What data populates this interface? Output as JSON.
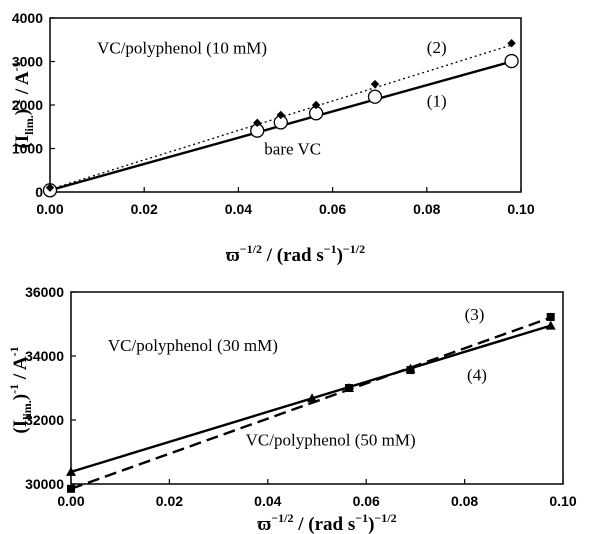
{
  "chart_data": [
    {
      "type": "scatter",
      "xlabel": {
        "main": "ϖ",
        "exp": "−1/2",
        "rest": " / (rad s",
        "exp2": "−1",
        "close": ")",
        "exp3": "−1/2"
      },
      "ylabel": {
        "open": "(I",
        "sub": "lim.",
        "close": ")",
        "exp": "-1",
        "rest": " / A",
        "exp2": "-1"
      },
      "xlim": [
        0,
        0.1
      ],
      "ylim": [
        0,
        4000
      ],
      "x_ticks": [
        "0.00",
        "0.02",
        "0.04",
        "0.06",
        "0.08",
        "0.10"
      ],
      "y_ticks": [
        "0",
        "1000",
        "2000",
        "3000",
        "4000"
      ],
      "series": [
        {
          "name": "(1)",
          "marker": "circle",
          "x": [
            0.0,
            0.044,
            0.049,
            0.0565,
            0.069,
            0.098
          ],
          "y": [
            40,
            1410,
            1600,
            1810,
            2190,
            3010
          ],
          "fit": {
            "x": [
              0,
              0.098
            ],
            "y": [
              40,
              3000
            ],
            "style": "solid"
          }
        },
        {
          "name": "(2)",
          "marker": "diamond",
          "x": [
            0.0,
            0.044,
            0.049,
            0.0565,
            0.069,
            0.098
          ],
          "y": [
            100,
            1590,
            1770,
            2000,
            2480,
            3420
          ],
          "fit": {
            "x": [
              0,
              0.098
            ],
            "y": [
              60,
              3380
            ],
            "style": "dotted"
          }
        }
      ],
      "annotations": [
        {
          "text": "VC/polyphenol (10 mM)",
          "x": 0.01,
          "y": 3180
        },
        {
          "text": "(2)",
          "x": 0.08,
          "y": 3200
        },
        {
          "text": "(1)",
          "x": 0.08,
          "y": 1970
        },
        {
          "text": "bare VC",
          "x": 0.0455,
          "y": 860
        }
      ]
    },
    {
      "type": "scatter",
      "xlabel": {
        "main": "ϖ",
        "exp": "−1/2",
        "rest": " / (rad s",
        "exp2": "−1",
        "close": ")",
        "exp3": "−1/2"
      },
      "ylabel": {
        "open": "(I",
        "sub": "lim.",
        "close": ")",
        "exp": "-1",
        "rest": " / A",
        "exp2": "-1"
      },
      "xlim": [
        0,
        0.1
      ],
      "ylim": [
        30000,
        36000
      ],
      "x_ticks": [
        "0.00",
        "0.02",
        "0.04",
        "0.06",
        "0.08",
        "0.10"
      ],
      "y_ticks": [
        "30000",
        "32000",
        "34000",
        "36000"
      ],
      "series": [
        {
          "name": "(3)",
          "marker": "square",
          "x": [
            0.0,
            0.0565,
            0.069,
            0.0975
          ],
          "y": [
            29850,
            33000,
            33560,
            35220
          ],
          "fit": {
            "x": [
              0,
              0.0975
            ],
            "y": [
              29850,
              35200
            ],
            "style": "dashed"
          }
        },
        {
          "name": "(4)",
          "marker": "triangle",
          "x": [
            0.0,
            0.049,
            0.0565,
            0.069,
            0.0975
          ],
          "y": [
            30380,
            32680,
            33000,
            33600,
            34950
          ],
          "fit": {
            "x": [
              0,
              0.0975
            ],
            "y": [
              30380,
              34950
            ],
            "style": "solid"
          }
        }
      ],
      "annotations": [
        {
          "text": "(3)",
          "x": 0.08,
          "y": 35120
        },
        {
          "text": "VC/polyphenol (30 mM)",
          "x": 0.0075,
          "y": 34150
        },
        {
          "text": "(4)",
          "x": 0.0805,
          "y": 33230
        },
        {
          "text": "VC/polyphenol (50 mM)",
          "x": 0.0355,
          "y": 31200
        }
      ]
    }
  ]
}
